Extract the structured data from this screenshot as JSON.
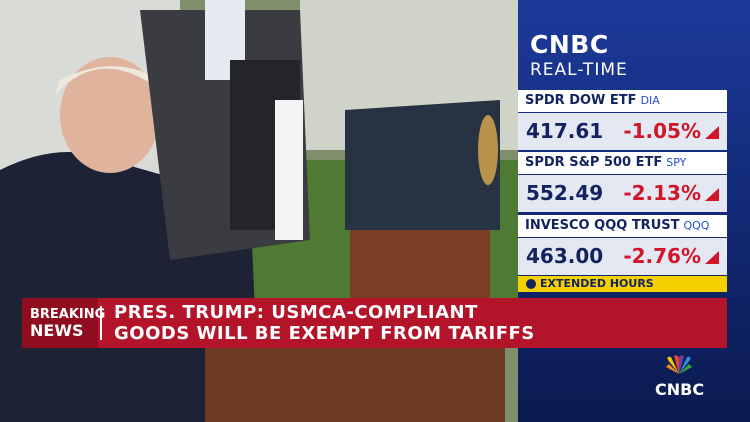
{
  "ticker_panel": {
    "brand": "CNBC",
    "subtitle": "REAL-TIME",
    "quotes": [
      {
        "name": "SPDR DOW ETF",
        "symbol": "DIA",
        "price": "417.61",
        "change": "-1.05%"
      },
      {
        "name": "SPDR S&P 500 ETF",
        "symbol": "SPY",
        "price": "552.49",
        "change": "-2.13%"
      },
      {
        "name": "INVESCO QQQ TRUST",
        "symbol": "QQQ",
        "price": "463.00",
        "change": "-2.76%"
      }
    ],
    "footer": "EXTENDED HOURS"
  },
  "lower_third": {
    "tag_line1": "BREAKING",
    "tag_line2": "NEWS",
    "headline_line1": "PRES. TRUMP: USMCA-COMPLIANT",
    "headline_line2": "GOODS WILL BE EXEMPT FROM TARIFFS"
  },
  "logo": {
    "text": "CNBC"
  }
}
